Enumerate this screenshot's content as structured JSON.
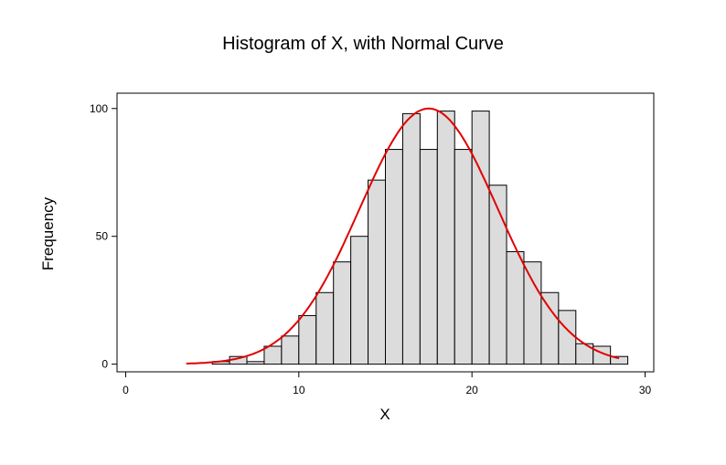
{
  "chart_data": {
    "type": "bar",
    "title": "Histogram of X, with Normal Curve",
    "xlabel": "X",
    "ylabel": "Frequency",
    "xlim": [
      -0.5,
      30.5
    ],
    "ylim": [
      -3,
      106
    ],
    "x_ticks": [
      0,
      10,
      20,
      30
    ],
    "y_ticks": [
      0,
      50,
      100
    ],
    "bin_width": 1,
    "bins": [
      {
        "x0": 4,
        "value": 0
      },
      {
        "x0": 5,
        "value": 1
      },
      {
        "x0": 6,
        "value": 3
      },
      {
        "x0": 7,
        "value": 1
      },
      {
        "x0": 8,
        "value": 7
      },
      {
        "x0": 9,
        "value": 11
      },
      {
        "x0": 10,
        "value": 19
      },
      {
        "x0": 11,
        "value": 28
      },
      {
        "x0": 12,
        "value": 40
      },
      {
        "x0": 13,
        "value": 50
      },
      {
        "x0": 14,
        "value": 72
      },
      {
        "x0": 15,
        "value": 84
      },
      {
        "x0": 16,
        "value": 98
      },
      {
        "x0": 17,
        "value": 84
      },
      {
        "x0": 18,
        "value": 99
      },
      {
        "x0": 19,
        "value": 84
      },
      {
        "x0": 20,
        "value": 99
      },
      {
        "x0": 21,
        "value": 70
      },
      {
        "x0": 22,
        "value": 44
      },
      {
        "x0": 23,
        "value": 40
      },
      {
        "x0": 24,
        "value": 28
      },
      {
        "x0": 25,
        "value": 21
      },
      {
        "x0": 26,
        "value": 8
      },
      {
        "x0": 27,
        "value": 7
      },
      {
        "x0": 28,
        "value": 3
      }
    ],
    "normal_curve": {
      "mean": 17.5,
      "sd": 4.0,
      "peak": 100,
      "x_range": [
        3.5,
        28.5
      ]
    },
    "bar_color": "#dcdcdc",
    "bar_edge_color": "#000000",
    "curve_color": "#e00000",
    "grid": false
  }
}
